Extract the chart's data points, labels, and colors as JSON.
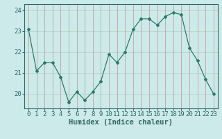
{
  "x": [
    0,
    1,
    2,
    3,
    4,
    5,
    6,
    7,
    8,
    9,
    10,
    11,
    12,
    13,
    14,
    15,
    16,
    17,
    18,
    19,
    20,
    21,
    22,
    23
  ],
  "y": [
    23.1,
    21.1,
    21.5,
    21.5,
    20.8,
    19.6,
    20.1,
    19.7,
    20.1,
    20.6,
    21.9,
    21.5,
    22.0,
    23.1,
    23.6,
    23.6,
    23.3,
    23.7,
    23.9,
    23.8,
    22.2,
    21.6,
    20.7,
    20.0
  ],
  "xlabel": "Humidex (Indice chaleur)",
  "xlim": [
    -0.5,
    23.5
  ],
  "ylim": [
    19.3,
    24.3
  ],
  "yticks": [
    20,
    21,
    22,
    23,
    24
  ],
  "xticks": [
    0,
    1,
    2,
    3,
    4,
    5,
    6,
    7,
    8,
    9,
    10,
    11,
    12,
    13,
    14,
    15,
    16,
    17,
    18,
    19,
    20,
    21,
    22,
    23
  ],
  "line_color": "#2a7a6a",
  "marker": "D",
  "marker_size": 2.0,
  "bg_color": "#cceaea",
  "grid_color_h": "#b8d8d0",
  "grid_color_v": "#c8a8a8",
  "axis_color": "#336666",
  "tick_color": "#336666",
  "label_fontsize": 6.5,
  "xlabel_fontsize": 7.5
}
